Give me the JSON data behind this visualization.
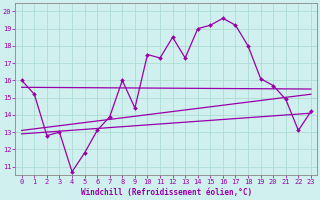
{
  "xlabel": "Windchill (Refroidissement éolien,°C)",
  "bg_color": "#cff0ee",
  "line_color": "#9900aa",
  "xlim": [
    -0.5,
    23.5
  ],
  "ylim": [
    10.5,
    20.5
  ],
  "yticks": [
    11,
    12,
    13,
    14,
    15,
    16,
    17,
    18,
    19,
    20
  ],
  "xticks": [
    0,
    1,
    2,
    3,
    4,
    5,
    6,
    7,
    8,
    9,
    10,
    11,
    12,
    13,
    14,
    15,
    16,
    17,
    18,
    19,
    20,
    21,
    22,
    23
  ],
  "main_x": [
    0,
    1,
    2,
    3,
    4,
    5,
    6,
    7,
    8,
    9,
    10,
    11,
    12,
    13,
    14,
    15,
    16,
    17,
    18,
    19,
    20,
    21,
    22,
    23
  ],
  "main_y": [
    16.0,
    15.2,
    12.8,
    13.0,
    10.7,
    11.8,
    13.1,
    13.9,
    16.0,
    14.4,
    17.5,
    17.3,
    18.5,
    17.3,
    19.0,
    19.2,
    19.6,
    19.2,
    18.0,
    16.1,
    15.7,
    14.9,
    13.1,
    14.2
  ],
  "line1_x": [
    0,
    23
  ],
  "line1_y": [
    15.6,
    15.5
  ],
  "line2_x": [
    0,
    23
  ],
  "line2_y": [
    13.1,
    15.2
  ],
  "line3_x": [
    0,
    23
  ],
  "line3_y": [
    12.9,
    14.1
  ]
}
